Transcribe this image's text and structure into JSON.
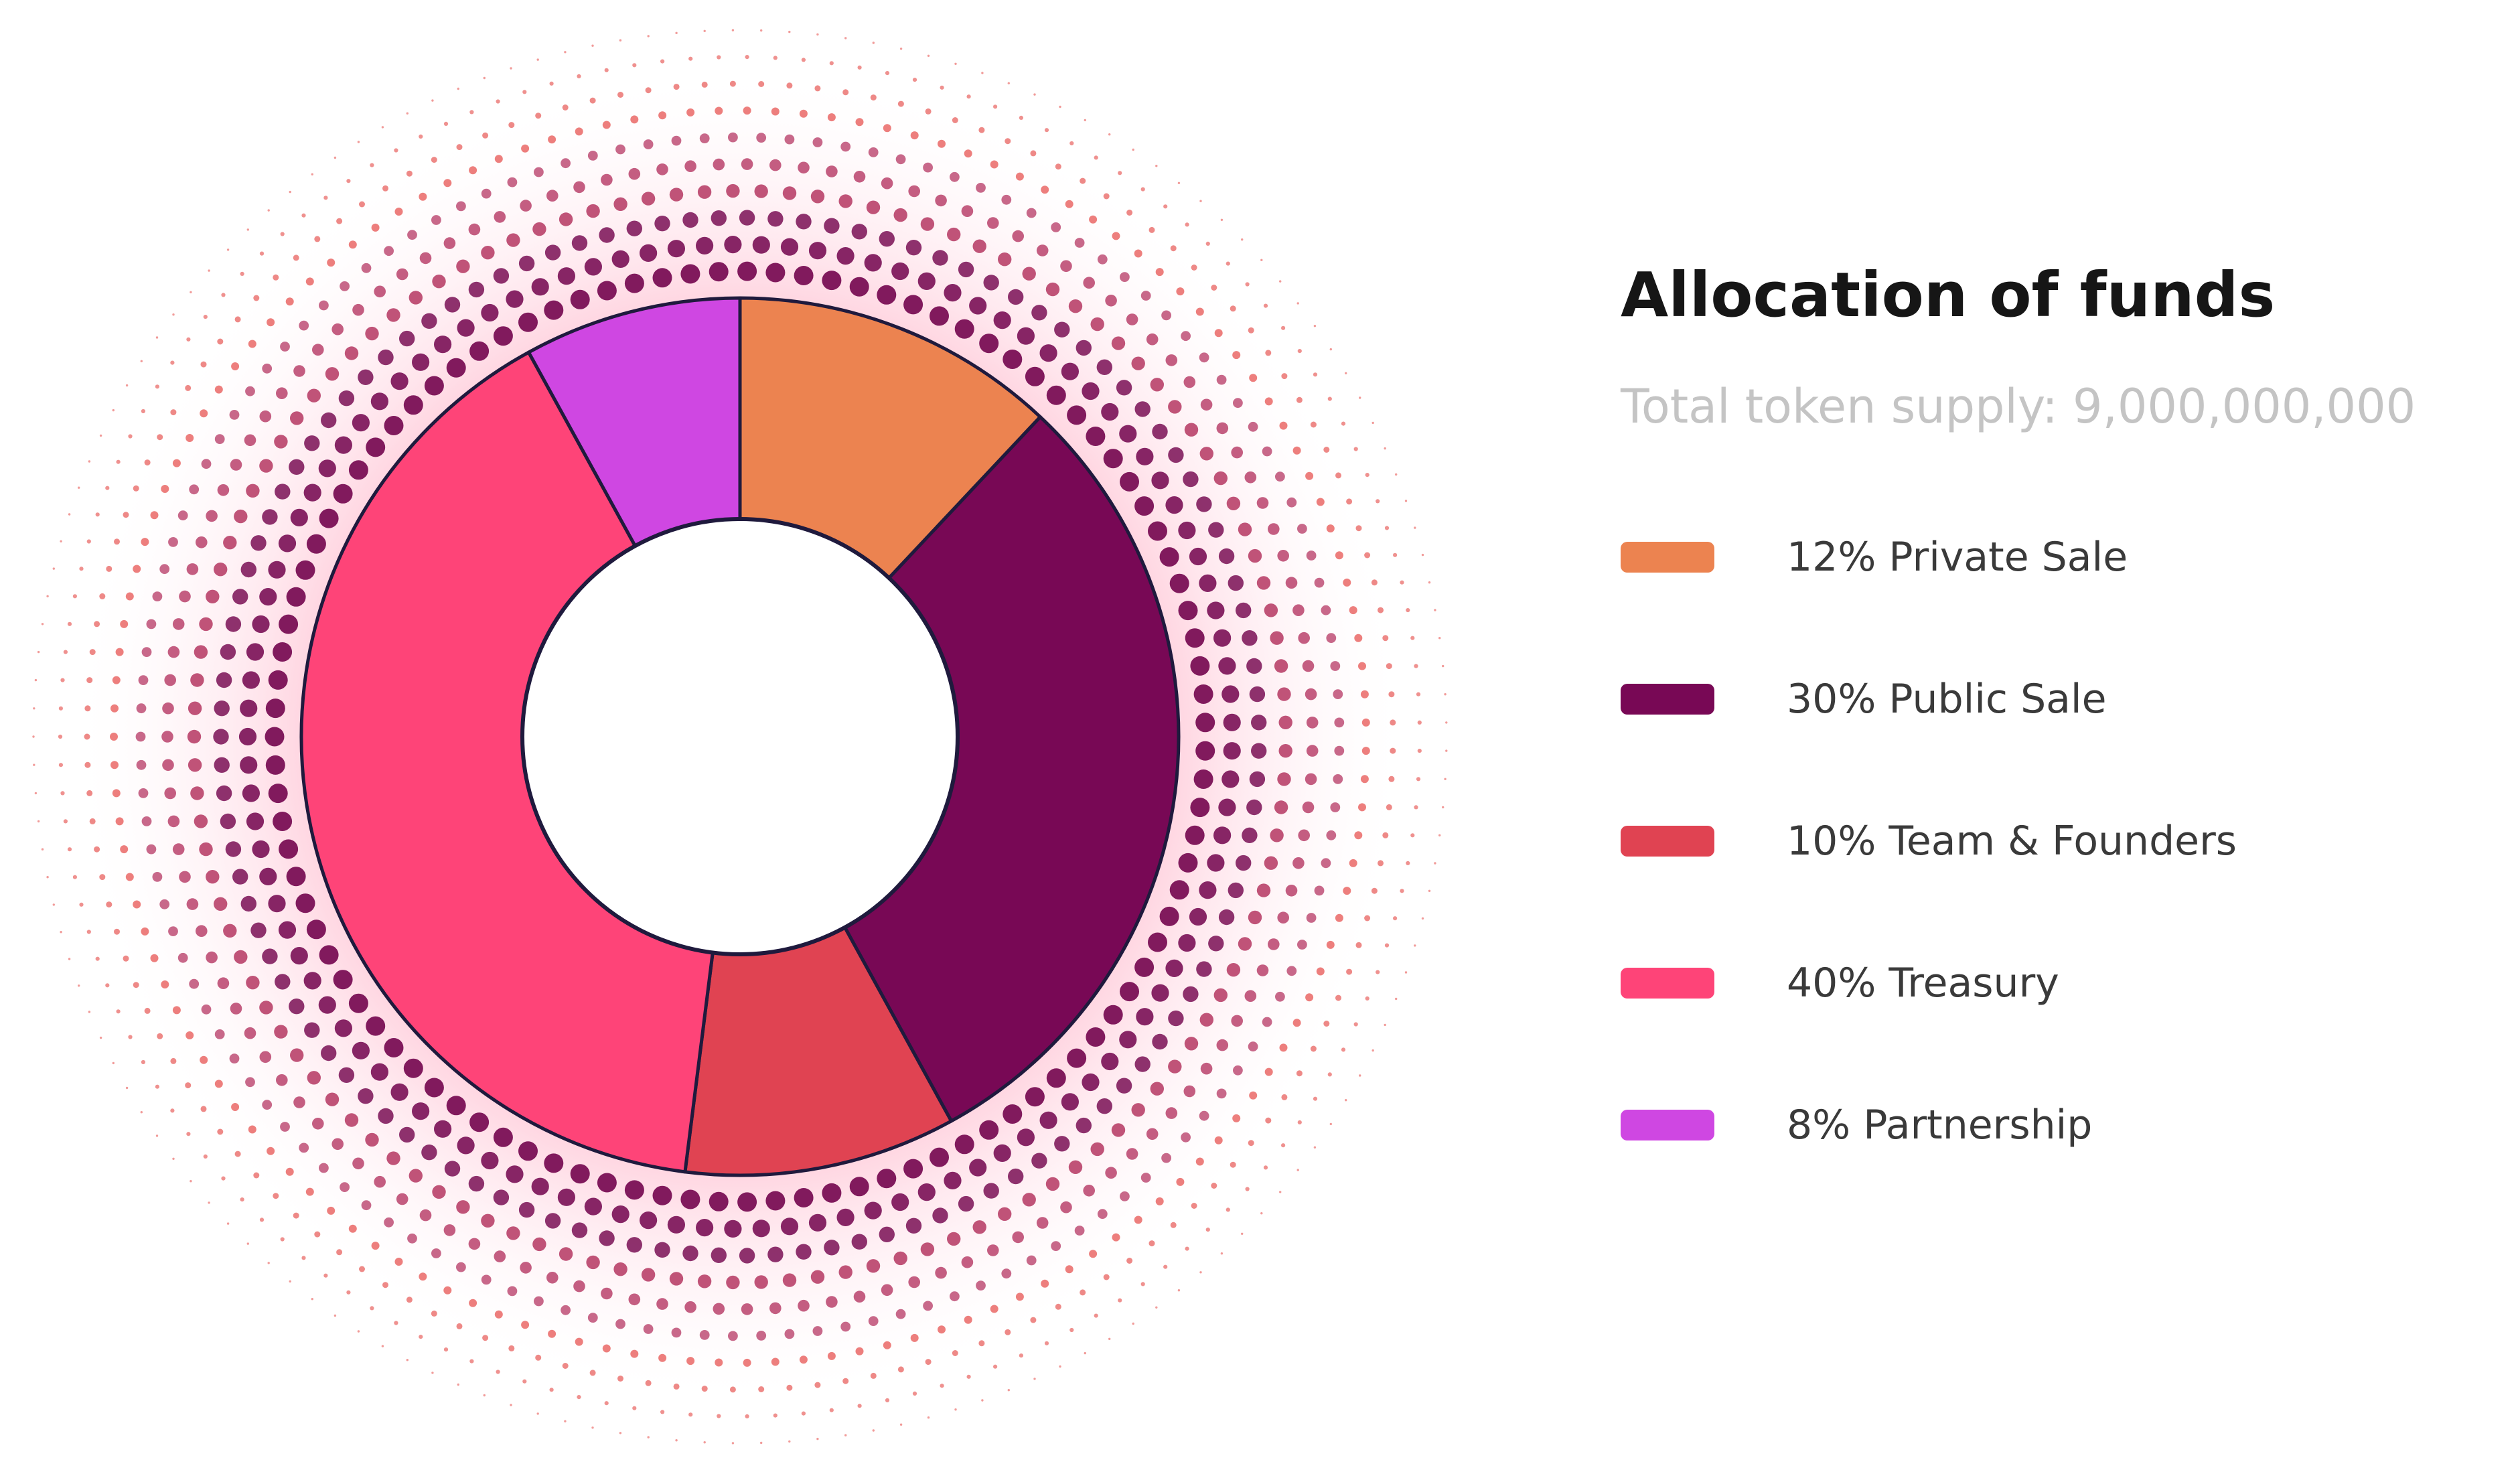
{
  "chart_data": {
    "type": "pie",
    "variant": "donut",
    "title": "Allocation of funds",
    "subtitle": "Total token supply: 9,000,000,000",
    "categories": [
      "Private Sale",
      "Public Sale",
      "Team & Founders",
      "Treasury",
      "Partnership"
    ],
    "values": [
      12,
      30,
      10,
      40,
      8
    ],
    "unit": "%",
    "labels": [
      "12% Private Sale",
      "30% Public Sale",
      "10% Team & Founders",
      "40% Treasury",
      "8% Partnership"
    ],
    "colors": [
      "#ec8350",
      "#780855",
      "#e04352",
      "#fe4478",
      "#cf47e2"
    ],
    "legend_position": "right",
    "decoration": "halftone dot halo around donut",
    "decoration_colors": [
      "#e33a37",
      "#b02a58",
      "#7a0f55"
    ]
  }
}
